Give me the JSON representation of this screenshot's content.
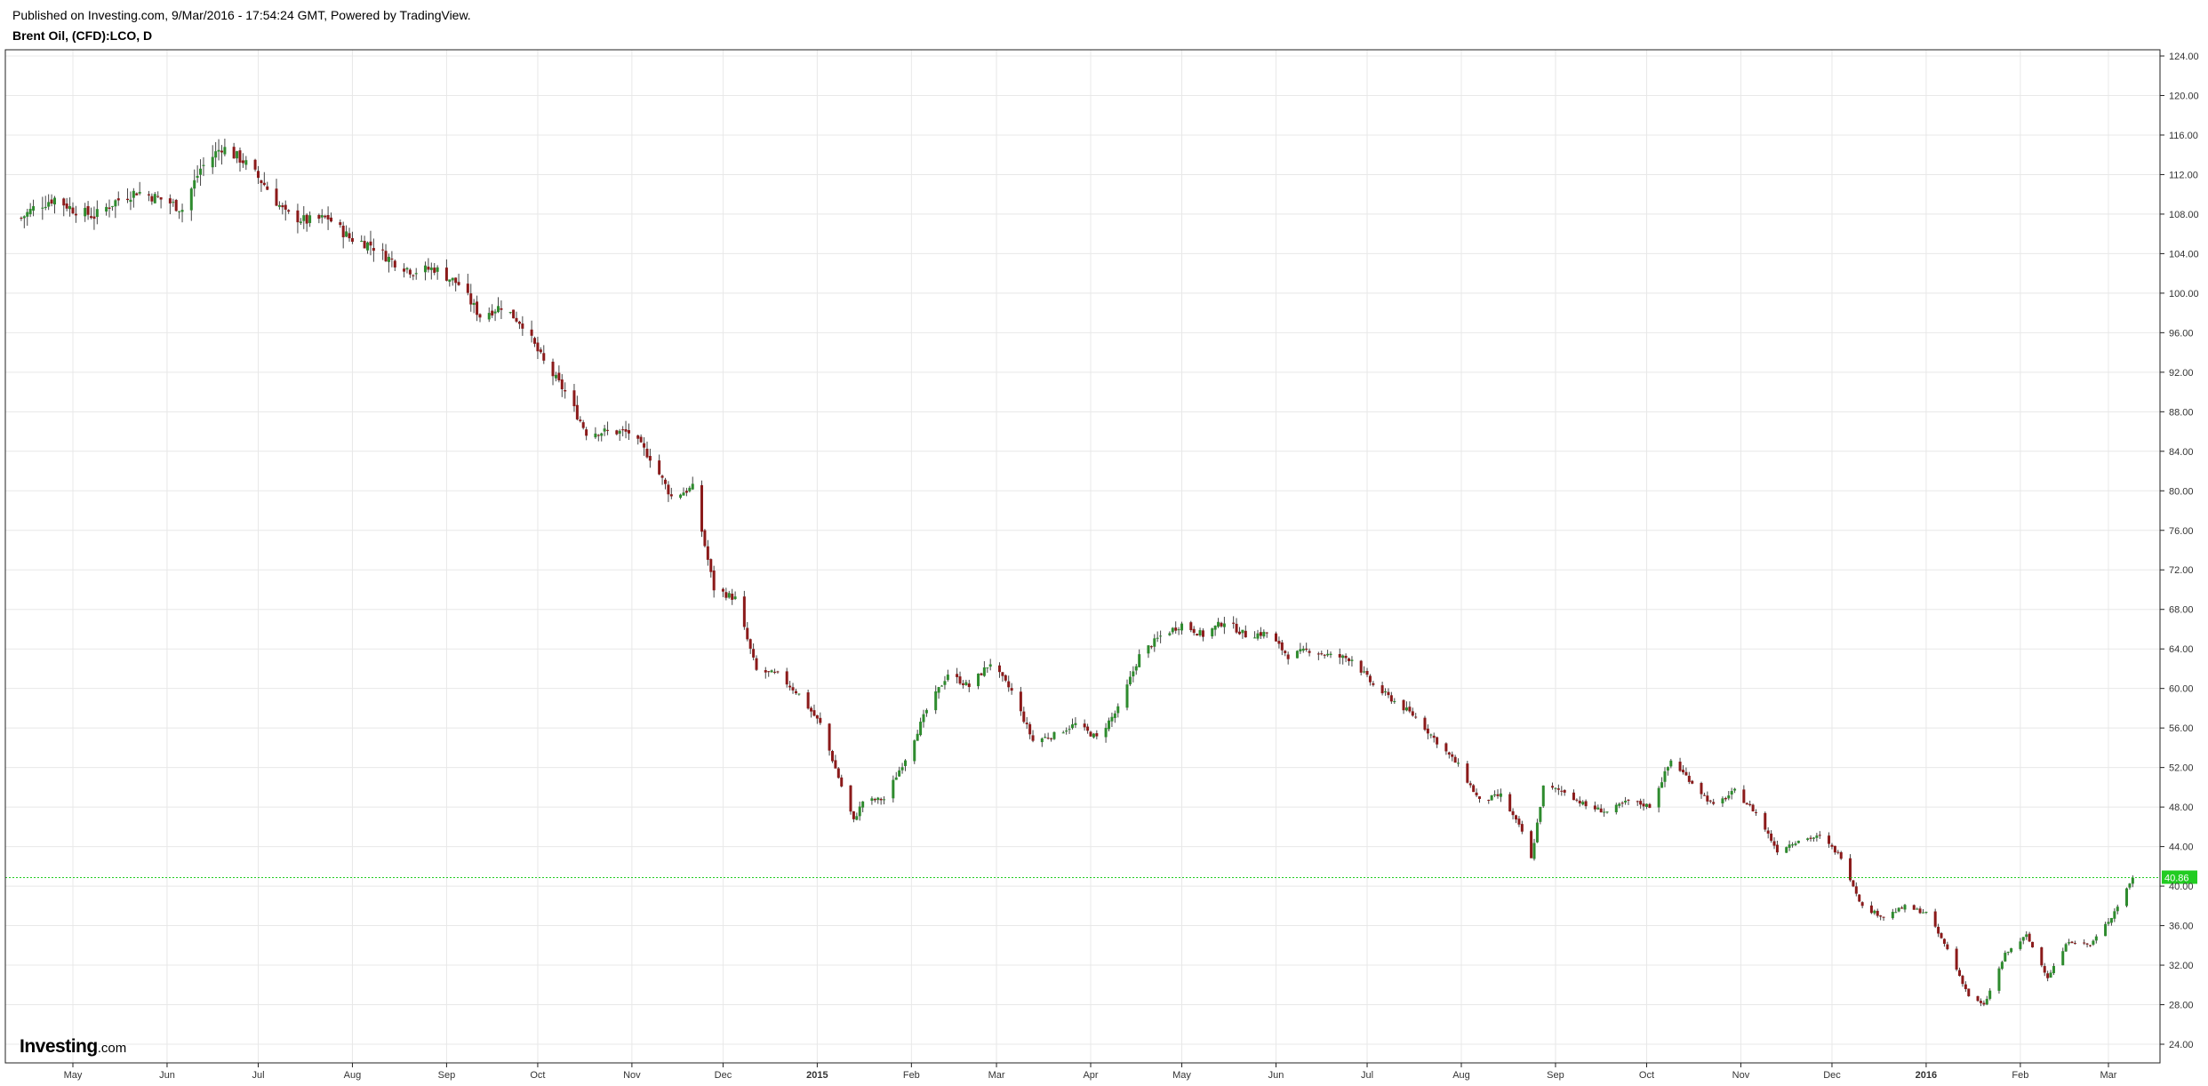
{
  "header": {
    "published": "Published on Investing.com, 9/Mar/2016 - 17:54:24 GMT, Powered by TradingView.",
    "symbol": "Brent Oil, (CFD):LCO, D"
  },
  "logo": {
    "main": "Investing",
    "suffix": ".com"
  },
  "colors": {
    "up": "#2e8b2e",
    "down": "#8b1a1a",
    "wick": "#444444",
    "grid": "#e8e8e8",
    "last_price": "#22cc22"
  },
  "chart_data": {
    "type": "candlestick",
    "title": "Brent Oil, (CFD):LCO, D",
    "start_date": "2014-05-01",
    "end_date": "2016-03-09",
    "ylim": [
      22,
      125
    ],
    "y_ticks": [
      "124.00",
      "120.00",
      "116.00",
      "112.00",
      "108.00",
      "104.00",
      "100.00",
      "96.00",
      "92.00",
      "88.00",
      "84.00",
      "80.00",
      "76.00",
      "72.00",
      "68.00",
      "64.00",
      "60.00",
      "56.00",
      "52.00",
      "48.00",
      "44.00",
      "40.00",
      "36.00",
      "32.00",
      "28.00",
      "24.00"
    ],
    "x_ticks": [
      {
        "date": "2014-05-01",
        "label": "May"
      },
      {
        "date": "2014-06-01",
        "label": "Jun"
      },
      {
        "date": "2014-07-01",
        "label": "Jul"
      },
      {
        "date": "2014-08-01",
        "label": "Aug"
      },
      {
        "date": "2014-09-01",
        "label": "Sep"
      },
      {
        "date": "2014-10-01",
        "label": "Oct"
      },
      {
        "date": "2014-11-01",
        "label": "Nov"
      },
      {
        "date": "2014-12-01",
        "label": "Dec"
      },
      {
        "date": "2015-01-01",
        "label": "2015",
        "year": true
      },
      {
        "date": "2015-02-01",
        "label": "Feb"
      },
      {
        "date": "2015-03-01",
        "label": "Mar"
      },
      {
        "date": "2015-04-01",
        "label": "Apr"
      },
      {
        "date": "2015-05-01",
        "label": "May"
      },
      {
        "date": "2015-06-01",
        "label": "Jun"
      },
      {
        "date": "2015-07-01",
        "label": "Jul"
      },
      {
        "date": "2015-08-01",
        "label": "Aug"
      },
      {
        "date": "2015-09-01",
        "label": "Sep"
      },
      {
        "date": "2015-10-01",
        "label": "Oct"
      },
      {
        "date": "2015-11-01",
        "label": "Nov"
      },
      {
        "date": "2015-12-01",
        "label": "Dec"
      },
      {
        "date": "2016-01-01",
        "label": "2016",
        "year": true
      },
      {
        "date": "2016-02-01",
        "label": "Feb"
      },
      {
        "date": "2016-03-01",
        "label": "Mar"
      }
    ],
    "last_price": 40.86,
    "last_price_label": "40.86",
    "close_anchors": [
      [
        "2014-04-14",
        107.6
      ],
      [
        "2014-04-18",
        108.6
      ],
      [
        "2014-04-25",
        109.6
      ],
      [
        "2014-05-01",
        108.5
      ],
      [
        "2014-05-08",
        107.8
      ],
      [
        "2014-05-15",
        109.3
      ],
      [
        "2014-05-22",
        110.3
      ],
      [
        "2014-06-01",
        109.3
      ],
      [
        "2014-06-06",
        108.5
      ],
      [
        "2014-06-12",
        112.6
      ],
      [
        "2014-06-19",
        114.8
      ],
      [
        "2014-06-26",
        113.4
      ],
      [
        "2014-07-03",
        111.0
      ],
      [
        "2014-07-10",
        108.0
      ],
      [
        "2014-07-17",
        107.3
      ],
      [
        "2014-07-24",
        107.6
      ],
      [
        "2014-07-31",
        105.6
      ],
      [
        "2014-08-07",
        104.9
      ],
      [
        "2014-08-14",
        103.3
      ],
      [
        "2014-08-21",
        102.2
      ],
      [
        "2014-08-28",
        102.5
      ],
      [
        "2014-09-05",
        100.9
      ],
      [
        "2014-09-12",
        97.7
      ],
      [
        "2014-09-19",
        98.7
      ],
      [
        "2014-09-26",
        96.9
      ],
      [
        "2014-10-03",
        93.0
      ],
      [
        "2014-10-10",
        90.0
      ],
      [
        "2014-10-17",
        85.9
      ],
      [
        "2014-10-24",
        86.0
      ],
      [
        "2014-10-31",
        85.9
      ],
      [
        "2014-11-07",
        83.4
      ],
      [
        "2014-11-14",
        79.4
      ],
      [
        "2014-11-21",
        80.3
      ],
      [
        "2014-11-28",
        70.1
      ],
      [
        "2014-12-05",
        69.1
      ],
      [
        "2014-12-12",
        61.8
      ],
      [
        "2014-12-19",
        61.4
      ],
      [
        "2014-12-26",
        59.4
      ],
      [
        "2015-01-02",
        56.4
      ],
      [
        "2015-01-09",
        50.1
      ],
      [
        "2015-01-13",
        46.6
      ],
      [
        "2015-01-16",
        48.6
      ],
      [
        "2015-01-23",
        48.8
      ],
      [
        "2015-01-30",
        52.9
      ],
      [
        "2015-02-06",
        57.8
      ],
      [
        "2015-02-13",
        61.5
      ],
      [
        "2015-02-20",
        60.2
      ],
      [
        "2015-02-27",
        62.6
      ],
      [
        "2015-03-06",
        59.7
      ],
      [
        "2015-03-13",
        54.7
      ],
      [
        "2015-03-20",
        55.3
      ],
      [
        "2015-03-27",
        56.4
      ],
      [
        "2015-04-03",
        55.0
      ],
      [
        "2015-04-10",
        57.9
      ],
      [
        "2015-04-17",
        63.3
      ],
      [
        "2015-04-24",
        65.3
      ],
      [
        "2015-05-01",
        66.5
      ],
      [
        "2015-05-08",
        65.4
      ],
      [
        "2015-05-15",
        66.8
      ],
      [
        "2015-05-22",
        65.4
      ],
      [
        "2015-05-29",
        65.6
      ],
      [
        "2015-06-05",
        63.3
      ],
      [
        "2015-06-12",
        63.9
      ],
      [
        "2015-06-19",
        63.3
      ],
      [
        "2015-06-26",
        63.0
      ],
      [
        "2015-07-03",
        60.3
      ],
      [
        "2015-07-10",
        58.7
      ],
      [
        "2015-07-17",
        57.1
      ],
      [
        "2015-07-24",
        54.6
      ],
      [
        "2015-07-31",
        52.2
      ],
      [
        "2015-08-07",
        48.6
      ],
      [
        "2015-08-14",
        49.2
      ],
      [
        "2015-08-21",
        45.5
      ],
      [
        "2015-08-24",
        42.7
      ],
      [
        "2015-08-28",
        50.0
      ],
      [
        "2015-09-04",
        49.6
      ],
      [
        "2015-09-11",
        48.1
      ],
      [
        "2015-09-18",
        47.5
      ],
      [
        "2015-09-25",
        48.6
      ],
      [
        "2015-10-02",
        48.1
      ],
      [
        "2015-10-09",
        52.7
      ],
      [
        "2015-10-16",
        50.5
      ],
      [
        "2015-10-23",
        48.1
      ],
      [
        "2015-10-30",
        49.6
      ],
      [
        "2015-11-06",
        47.4
      ],
      [
        "2015-11-13",
        43.6
      ],
      [
        "2015-11-20",
        44.7
      ],
      [
        "2015-11-27",
        45.0
      ],
      [
        "2015-12-04",
        43.0
      ],
      [
        "2015-12-11",
        37.9
      ],
      [
        "2015-12-18",
        36.9
      ],
      [
        "2015-12-25",
        37.9
      ],
      [
        "2016-01-01",
        37.3
      ],
      [
        "2016-01-08",
        33.6
      ],
      [
        "2016-01-15",
        28.9
      ],
      [
        "2016-01-20",
        27.9
      ],
      [
        "2016-01-27",
        33.1
      ],
      [
        "2016-02-03",
        35.0
      ],
      [
        "2016-02-10",
        30.8
      ],
      [
        "2016-02-17",
        34.5
      ],
      [
        "2016-02-24",
        34.0
      ],
      [
        "2016-03-02",
        36.9
      ],
      [
        "2016-03-09",
        40.86
      ]
    ]
  }
}
